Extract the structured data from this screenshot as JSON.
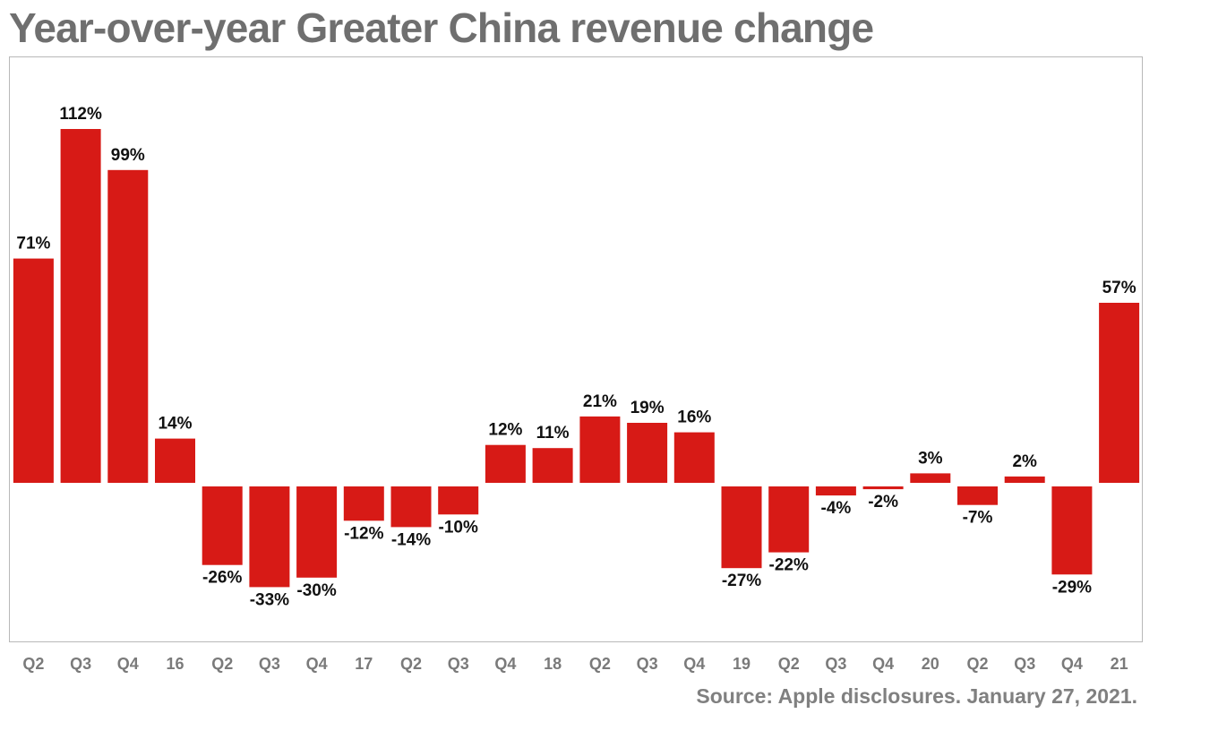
{
  "chart_data": {
    "type": "bar",
    "title": "Year-over-year Greater China revenue change",
    "xlabel": "",
    "ylabel": "",
    "ylim": [
      -33,
      112
    ],
    "grid": false,
    "legend": "none",
    "categories": [
      "Q2",
      "Q3",
      "Q4",
      "16",
      "Q2",
      "Q3",
      "Q4",
      "17",
      "Q2",
      "Q3",
      "Q4",
      "18",
      "Q2",
      "Q3",
      "Q4",
      "19",
      "Q2",
      "Q3",
      "Q4",
      "20",
      "Q2",
      "Q3",
      "Q4",
      "21"
    ],
    "values": [
      71,
      112,
      99,
      14,
      -26,
      -33,
      -30,
      -12,
      -14,
      -10,
      12,
      11,
      21,
      19,
      16,
      -27,
      -22,
      -4,
      -2,
      3,
      -7,
      2,
      -29,
      57
    ],
    "data_labels": [
      "71%",
      "112%",
      "99%",
      "14%",
      "-26%",
      "-33%",
      "-30%",
      "-12%",
      "-14%",
      "-10%",
      "12%",
      "11%",
      "21%",
      "19%",
      "16%",
      "-27%",
      "-22%",
      "-4%",
      "-2%",
      "3%",
      "-7%",
      "2%",
      "-29%",
      "57%"
    ],
    "bar_color": "#d71a16",
    "source": "Source: Apple disclosures. January 27, 2021."
  }
}
